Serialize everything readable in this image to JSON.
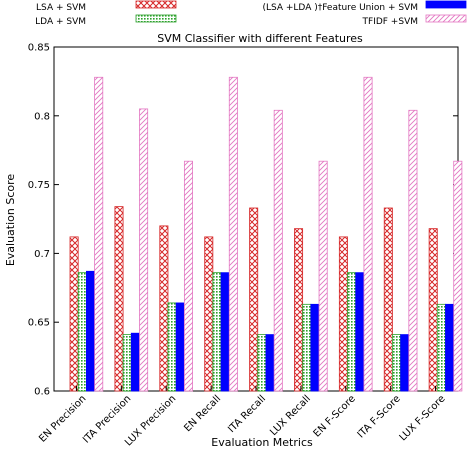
{
  "chart_data": {
    "type": "bar",
    "title": "SVM Classifier with different Features",
    "xlabel": "Evaluation Metrics",
    "ylabel": "Evaluation Score",
    "ylim": [
      0.6,
      0.85
    ],
    "yticks": [
      0.6,
      0.65,
      0.7,
      0.75,
      0.8,
      0.85
    ],
    "ytick_labels": [
      "0.6",
      "0.65",
      "0.7",
      "0.75",
      "0.8",
      "0.85"
    ],
    "grid": false,
    "legend_position": "top",
    "categories": [
      "EN Precision",
      "ITA Precision",
      "LUX Precision",
      "EN Recall",
      "ITA Recall",
      "LUX Recall",
      "EN F-Score",
      "ITA F-Score",
      "LUX F-Score"
    ],
    "series": [
      {
        "name": "LSA + SVM",
        "color": "#d62728",
        "pattern": "crosshatch",
        "values": [
          0.712,
          0.734,
          0.72,
          0.712,
          0.733,
          0.718,
          0.712,
          0.733,
          0.718
        ]
      },
      {
        "name": "LDA + SVM",
        "color": "#2ca02c",
        "pattern": "dots",
        "values": [
          0.686,
          0.641,
          0.664,
          0.686,
          0.641,
          0.663,
          0.686,
          0.641,
          0.663
        ]
      },
      {
        "name": "(LSA +LDA )†Feature Union + SVM",
        "color": "#0000ff",
        "pattern": "solid",
        "values": [
          0.687,
          0.642,
          0.664,
          0.686,
          0.641,
          0.663,
          0.686,
          0.641,
          0.663
        ]
      },
      {
        "name": "TFIDF +SVM",
        "color": "#e377c2",
        "pattern": "diagonal",
        "values": [
          0.828,
          0.805,
          0.767,
          0.828,
          0.804,
          0.767,
          0.828,
          0.804,
          0.767
        ]
      }
    ]
  }
}
